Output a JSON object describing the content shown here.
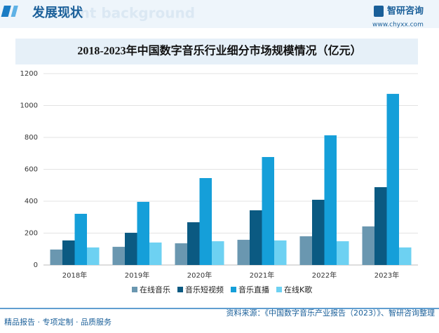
{
  "header": {
    "title": "发展现状",
    "subtitle": "ent background",
    "logo": "智研咨询",
    "url": "www.chyxx.com"
  },
  "chart_data": {
    "type": "bar",
    "title": "2018-2023年中国数字音乐行业细分市场规模情况（亿元）",
    "categories": [
      "2018年",
      "2019年",
      "2020年",
      "2021年",
      "2022年",
      "2023年"
    ],
    "series": [
      {
        "name": "在线音乐",
        "color": "#6a97b0",
        "values": [
          97,
          114,
          136,
          158,
          180,
          242
        ]
      },
      {
        "name": "音乐短视频",
        "color": "#0b5a82",
        "values": [
          154,
          202,
          268,
          343,
          409,
          488
        ]
      },
      {
        "name": "音乐直播",
        "color": "#159fd9",
        "values": [
          321,
          396,
          545,
          677,
          813,
          1073
        ]
      },
      {
        "name": "在线K歌",
        "color": "#6dd1f2",
        "values": [
          110,
          141,
          149,
          154,
          149,
          110
        ]
      }
    ],
    "ylim": [
      0,
      1200
    ],
    "yticks": [
      0,
      200,
      400,
      600,
      800,
      1000,
      1200
    ],
    "grid": true
  },
  "footer": {
    "slogan": "精品报告 · 专项定制 · 品质服务",
    "source": "资料来源：《中国数字音乐产业报告（2023）》、智研咨询整理"
  }
}
